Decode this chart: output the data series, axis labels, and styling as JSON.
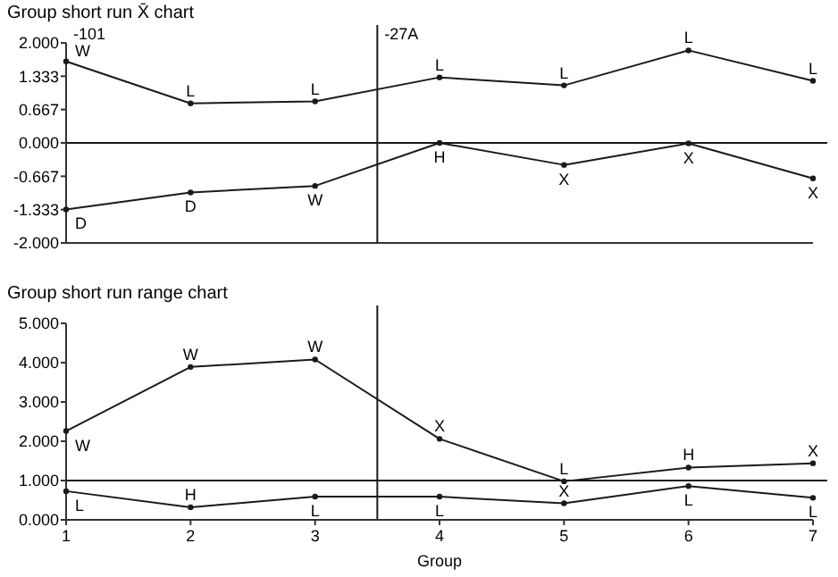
{
  "chart_data": [
    {
      "type": "line",
      "title": "Group short run X̄ chart",
      "x": [
        1,
        2,
        3,
        4,
        5,
        6,
        7
      ],
      "series": [
        {
          "color": "#1a1a1a",
          "values": [
            1.63,
            0.79,
            0.83,
            1.31,
            1.15,
            1.85,
            1.24
          ]
        },
        {
          "color": "#1a1a1a",
          "values": [
            -1.33,
            -0.99,
            -0.86,
            0,
            -0.44,
            -0.01,
            -0.71
          ]
        }
      ],
      "xlim": [
        1,
        7
      ],
      "ylim": [
        -2,
        2
      ],
      "yticks": [
        {
          "value": -2,
          "label": "-2.000"
        },
        {
          "value": -1.333,
          "label": "-1.333"
        },
        {
          "value": -0.667,
          "label": "-0.667"
        },
        {
          "value": 0,
          "label": "0.000"
        },
        {
          "value": 0.667,
          "label": "0.667"
        },
        {
          "value": 1.333,
          "label": "1.333"
        },
        {
          "value": 2,
          "label": "2.000"
        }
      ],
      "tick_labels": "y",
      "marker": "circle",
      "line_style": "solid",
      "grid": false,
      "ref_lines": [
        {
          "axis": "y",
          "value": 0,
          "label": null
        },
        {
          "axis": "x",
          "value": 3.5,
          "label": "-27A"
        }
      ],
      "annotations": [
        "-101",
        {
          "text": "W",
          "x": 1,
          "y": 1.63
        },
        {
          "text": "L",
          "x": 2,
          "y": 0.79
        },
        {
          "text": "L",
          "x": 3,
          "y": 0.83
        },
        {
          "text": "L",
          "x": 4,
          "y": 1.31
        },
        {
          "text": "L",
          "x": 5,
          "y": 1.15
        },
        {
          "text": "L",
          "x": 6,
          "y": 1.85
        },
        {
          "text": "L",
          "x": 7,
          "y": 1.24
        },
        {
          "text": "D",
          "x": 1,
          "y": -1.33
        },
        {
          "text": "D",
          "x": 2,
          "y": -0.99
        },
        {
          "text": "W",
          "x": 3,
          "y": -0.86
        },
        {
          "text": "H",
          "x": 4,
          "y": 0
        },
        {
          "text": "X",
          "x": 5,
          "y": -0.44
        },
        {
          "text": "X",
          "x": 6,
          "y": -0.01
        },
        {
          "text": "X",
          "x": 7,
          "y": -0.71
        }
      ]
    },
    {
      "type": "line",
      "title": "Group short run range chart",
      "xlabel": "Group",
      "x": [
        1,
        2,
        3,
        4,
        5,
        6,
        7
      ],
      "series": [
        {
          "color": "#1a1a1a",
          "values": [
            2.26,
            3.89,
            4.08,
            2.06,
            0.98,
            1.33,
            1.44
          ]
        },
        {
          "color": "#1a1a1a",
          "values": [
            0.73,
            0.32,
            0.59,
            0.59,
            0.42,
            0.86,
            0.56
          ]
        }
      ],
      "xlim": [
        1,
        7
      ],
      "xticks": [
        1,
        2,
        3,
        4,
        5,
        6,
        7
      ],
      "ylim": [
        0,
        5
      ],
      "yticks": [
        {
          "value": 0,
          "label": "0.000"
        },
        {
          "value": 1,
          "label": "1.000"
        },
        {
          "value": 2,
          "label": "2.000"
        },
        {
          "value": 3,
          "label": "3.000"
        },
        {
          "value": 4,
          "label": "4.000"
        },
        {
          "value": 5,
          "label": "5.000"
        }
      ],
      "marker": "circle",
      "line_style": "solid",
      "grid": false,
      "ref_lines": [
        {
          "axis": "y",
          "value": 1,
          "label": null
        },
        {
          "axis": "x",
          "value": 3.5,
          "label": null
        }
      ],
      "annotations": [
        {
          "text": "W",
          "x": 1,
          "y": 2.26
        },
        {
          "text": "W",
          "x": 2,
          "y": 3.89
        },
        {
          "text": "W",
          "x": 3,
          "y": 4.08
        },
        {
          "text": "X",
          "x": 4,
          "y": 2.06
        },
        {
          "text": "L",
          "x": 5,
          "y": 0.98
        },
        {
          "text": "H",
          "x": 6,
          "y": 1.33
        },
        {
          "text": "X",
          "x": 7,
          "y": 1.44
        },
        {
          "text": "L",
          "x": 1,
          "y": 0.73
        },
        {
          "text": "H",
          "x": 2,
          "y": 0.32
        },
        {
          "text": "L",
          "x": 3,
          "y": 0.59
        },
        {
          "text": "L",
          "x": 4,
          "y": 0.59
        },
        {
          "text": "X",
          "x": 5,
          "y": 0.42
        },
        {
          "text": "L",
          "x": 6,
          "y": 0.86
        },
        {
          "text": "L",
          "x": 7,
          "y": 0.56
        }
      ]
    }
  ]
}
